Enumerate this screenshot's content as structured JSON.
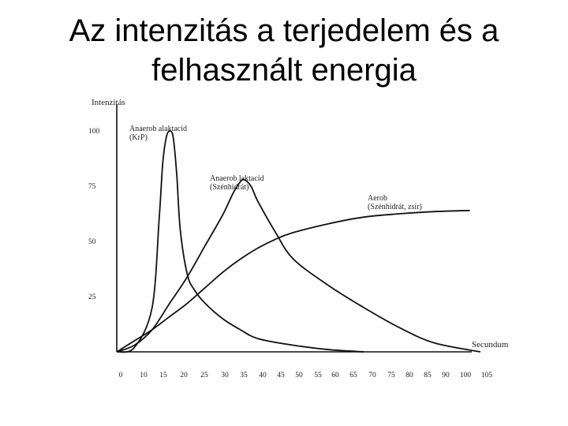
{
  "slide": {
    "title_line1": "Az intenzitás a terjedelem és a",
    "title_line2": "felhasznált energia"
  },
  "chart_data": {
    "type": "line",
    "xlabel": "Secundum",
    "ylabel": "Intenzitás",
    "xlim": [
      0,
      105
    ],
    "ylim": [
      0,
      110
    ],
    "x_ticks": [
      0,
      10,
      15,
      20,
      25,
      30,
      35,
      40,
      45,
      50,
      55,
      60,
      65,
      70,
      75,
      80,
      85,
      90,
      100,
      105
    ],
    "y_ticks": [
      25,
      50,
      75,
      100
    ],
    "series": [
      {
        "name": "Anaerob alaktacid (KrP)",
        "label_line1": "Anaerob alaktacid",
        "label_line2": "(KrP)",
        "x": [
          0,
          5,
          10,
          12,
          13,
          14,
          15,
          16,
          17,
          18,
          20,
          22,
          25,
          30,
          35,
          40,
          50,
          60,
          70
        ],
        "y": [
          0,
          2,
          20,
          60,
          85,
          97,
          100,
          97,
          80,
          55,
          35,
          28,
          22,
          15,
          10,
          6,
          3,
          1,
          0
        ]
      },
      {
        "name": "Anaerob laktacid (Szénhidrát)",
        "label_line1": "Anaerob laktacid",
        "label_line2": "(Szénhidrát)",
        "x": [
          0,
          5,
          10,
          15,
          20,
          25,
          30,
          33,
          35,
          36,
          38,
          40,
          45,
          50,
          60,
          70,
          80,
          90,
          103
        ],
        "y": [
          0,
          3,
          10,
          22,
          34,
          48,
          62,
          72,
          77,
          78,
          75,
          68,
          54,
          42,
          30,
          20,
          11,
          4,
          0
        ]
      },
      {
        "name": "Aerob (Szénhidrát, zsír)",
        "label_line1": "Aerob",
        "label_line2": "(Szénhidrát, zsír)",
        "x": [
          0,
          5,
          10,
          15,
          20,
          25,
          30,
          35,
          40,
          45,
          50,
          60,
          70,
          80,
          90,
          100
        ],
        "y": [
          0,
          5,
          10,
          16,
          22,
          29,
          36,
          42,
          47,
          51,
          54,
          58,
          61,
          62.5,
          63.5,
          64
        ]
      }
    ]
  }
}
